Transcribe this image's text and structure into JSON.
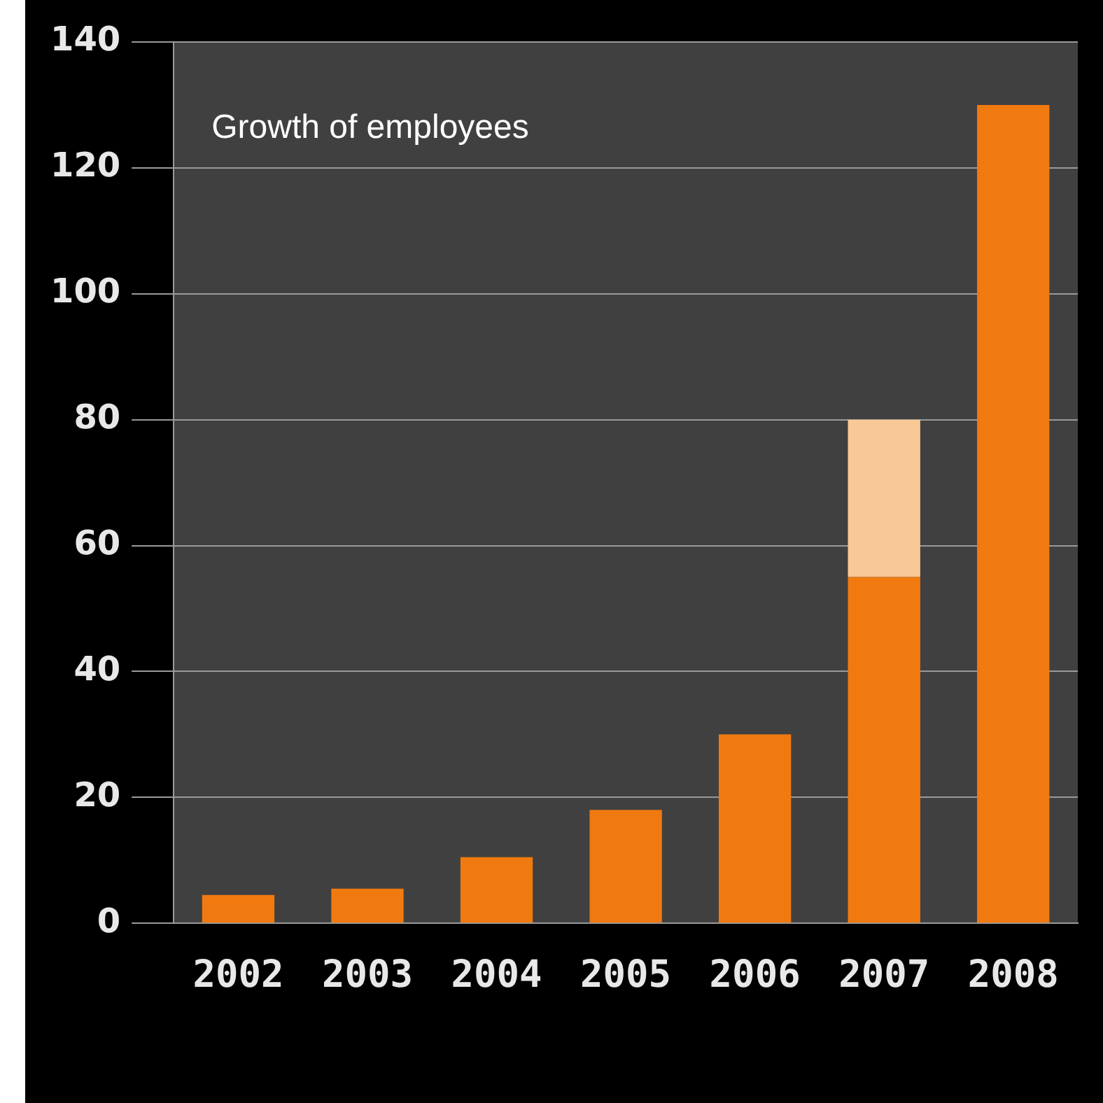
{
  "chart_data": {
    "type": "bar",
    "title": "Growth of employees",
    "stacked": true,
    "categories": [
      "2002",
      "2003",
      "2004",
      "2005",
      "2006",
      "2007",
      "2008"
    ],
    "series": [
      {
        "color": "#f07a10",
        "values": [
          4.5,
          5.5,
          10.5,
          18,
          30,
          55,
          130
        ]
      },
      {
        "color": "#f8c896",
        "values": [
          null,
          null,
          null,
          null,
          null,
          25,
          null
        ]
      }
    ],
    "ylim": [
      0,
      140
    ],
    "yticks": [
      0,
      20,
      40,
      60,
      80,
      100,
      120,
      140
    ],
    "grid": "y",
    "legend": false
  }
}
